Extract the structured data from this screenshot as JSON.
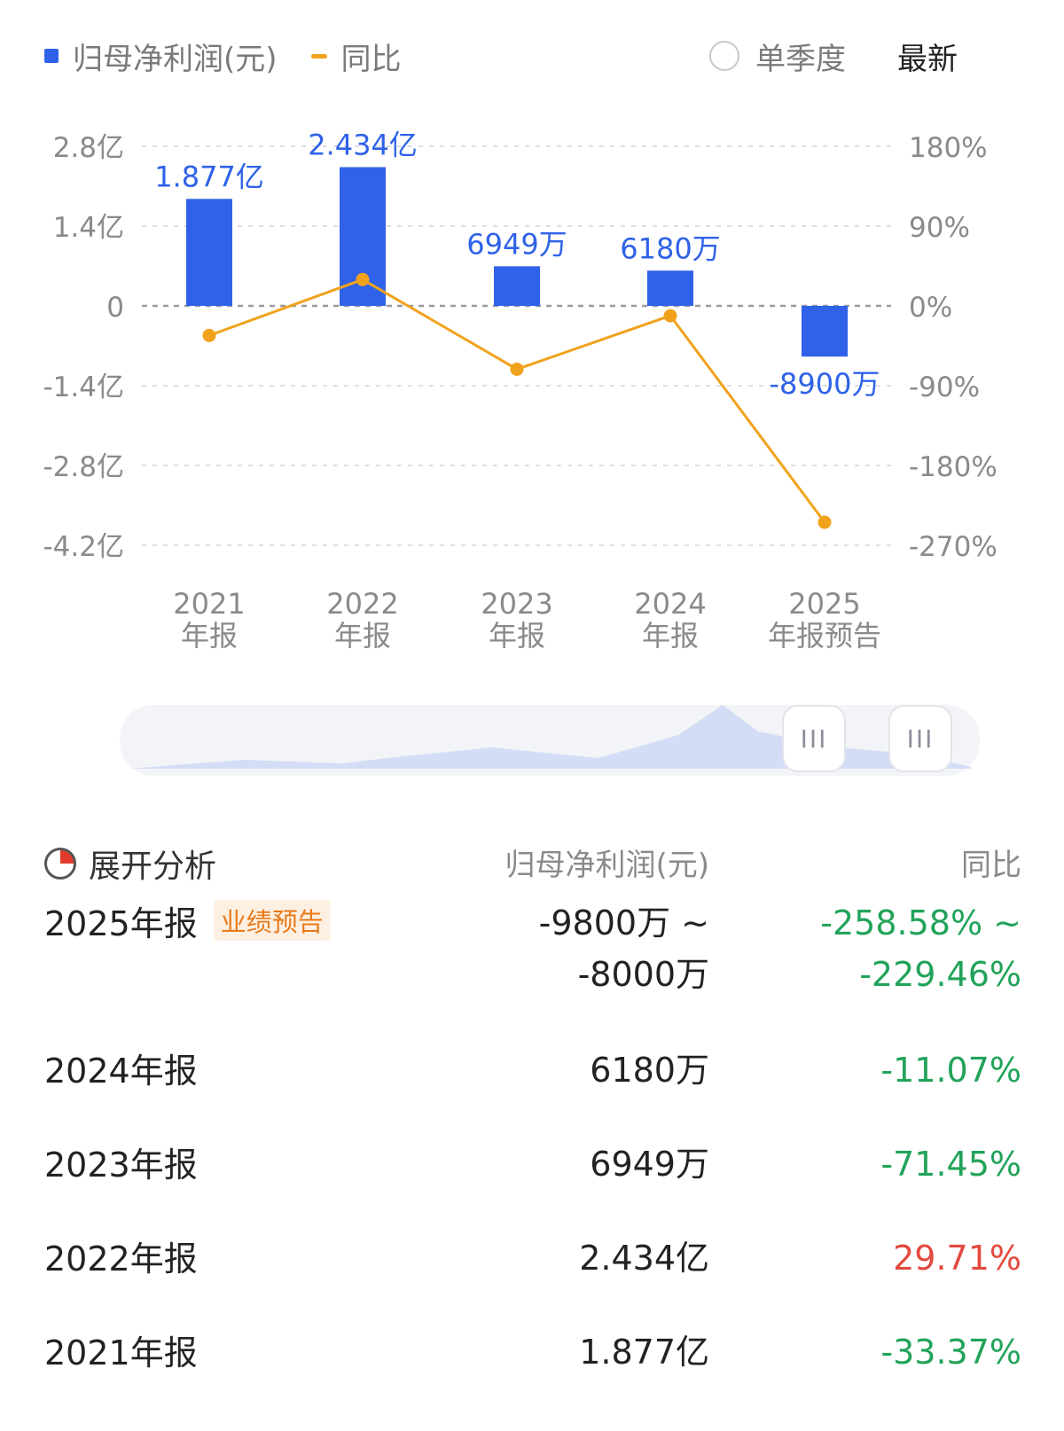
{
  "legend": {
    "series1": "归母净利润(元)",
    "series2": "同比"
  },
  "toggle": {
    "label": "单季度"
  },
  "latest": {
    "label": "最新"
  },
  "colors": {
    "bar": "#2f62e9",
    "line": "#f1a21c",
    "negative": "#22a35a",
    "positive": "#e34a3f"
  },
  "chart_data": {
    "type": "bar",
    "categories": [
      "2021\n年报",
      "2022\n年报",
      "2023\n年报",
      "2024\n年报",
      "2025\n年报预告"
    ],
    "series": [
      {
        "name": "归母净利润(元)",
        "type": "bar",
        "axis": "left",
        "values": [
          187700000,
          243400000,
          69490000,
          61800000,
          -89000000
        ],
        "labels": [
          "1.877亿",
          "2.434亿",
          "6949万",
          "6180万",
          "-8900万"
        ]
      },
      {
        "name": "同比",
        "type": "line",
        "axis": "right",
        "values": [
          -33.37,
          29.71,
          -71.45,
          -11.07,
          -244.02
        ]
      }
    ],
    "y_left": {
      "min": -420000000,
      "max": 280000000,
      "ticks": [
        280000000,
        140000000,
        0,
        -140000000,
        -280000000,
        -420000000
      ],
      "tick_labels": [
        "2.8亿",
        "1.4亿",
        "0",
        "-1.4亿",
        "-2.8亿",
        "-4.2亿"
      ]
    },
    "y_right": {
      "min": -270,
      "max": 180,
      "ticks": [
        180,
        90,
        0,
        -90,
        -180,
        -270
      ],
      "tick_labels": [
        "180%",
        "90%",
        "0%",
        "-90%",
        "-180%",
        "-270%"
      ]
    },
    "grid": true,
    "legend_position": "top-left"
  },
  "table": {
    "analysis_label": "展开分析",
    "col_value": "归母净利润(元)",
    "col_yoy": "同比",
    "rows": [
      {
        "period": "2025年报",
        "badge": "业绩预告",
        "value": "-9800万 ~",
        "value2": "-8000万",
        "yoy": "-258.58% ~",
        "yoy2": "-229.46%",
        "sign": "neg"
      },
      {
        "period": "2024年报",
        "value": "6180万",
        "yoy": "-11.07%",
        "sign": "neg"
      },
      {
        "period": "2023年报",
        "value": "6949万",
        "yoy": "-71.45%",
        "sign": "neg"
      },
      {
        "period": "2022年报",
        "value": "2.434亿",
        "yoy": "29.71%",
        "sign": "pos"
      },
      {
        "period": "2021年报",
        "value": "1.877亿",
        "yoy": "-33.37%",
        "sign": "neg"
      }
    ]
  }
}
